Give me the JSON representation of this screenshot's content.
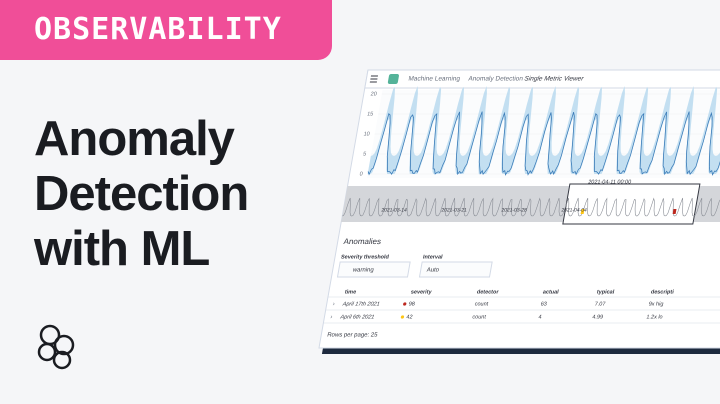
{
  "banner": {
    "label": "OBSERVABILITY"
  },
  "headline": {
    "lines": [
      "Anomaly",
      "Detection",
      "with ML"
    ]
  },
  "screenshot": {
    "breadcrumb": [
      "Machine Learning",
      "Anomaly Detection",
      "Single Metric Viewer"
    ],
    "chart_axis": [
      20,
      15,
      10,
      5,
      0
    ],
    "timestamp": "2021-04-11 00:00",
    "overview_dates": [
      "2021-03-14",
      "2021-03-21",
      "2021-03-28",
      "2021-04-04"
    ],
    "anomalies_title": "Anomalies",
    "filters": [
      {
        "label": "Severity threshold",
        "value": "warning"
      },
      {
        "label": "Interval",
        "value": "Auto"
      }
    ],
    "table": {
      "headers": [
        "time",
        "severity",
        "detector",
        "actual",
        "typical",
        "descripti"
      ],
      "rows": [
        [
          "April 17th 2021",
          "98",
          "count",
          "63",
          "7.07",
          "9x hig"
        ],
        [
          "April 6th 2021",
          "42",
          "count",
          "4",
          "4.99",
          "1.2x lo"
        ]
      ]
    },
    "pagination": "Rows per page: 25"
  }
}
